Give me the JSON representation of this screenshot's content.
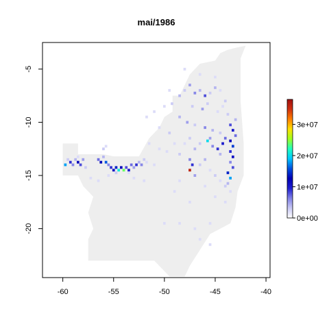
{
  "chart_data": {
    "type": "heatmap",
    "title": "mai/1986",
    "xlabel": "",
    "ylabel": "",
    "xlim": [
      -62,
      -39.6
    ],
    "ylim": [
      -24.6,
      -2.5
    ],
    "x_ticks": [
      -60,
      -55,
      -50,
      -45,
      -40
    ],
    "x_tick_labels": [
      "-60",
      "-55",
      "-50",
      "-45",
      "-40"
    ],
    "y_ticks": [
      -5,
      -10,
      -15,
      -20
    ],
    "y_tick_labels": [
      "-5",
      "-10",
      "-15",
      "-20"
    ],
    "colorbar": {
      "range": [
        0,
        38000000
      ],
      "ticks": [
        0,
        10000000,
        20000000,
        30000000
      ],
      "tick_labels": [
        "0e+00",
        "1e+07",
        "2e+07",
        "3e+07"
      ],
      "colors": [
        "#ffffff",
        "#c8c8f4",
        "#8080e6",
        "#2020d0",
        "#0000b4",
        "#0050e0",
        "#00c8ff",
        "#20ffc0",
        "#a0ff20",
        "#ffe000",
        "#ff8000",
        "#d03010",
        "#a01010"
      ]
    },
    "grid": false,
    "background_region_color": "#eeeeee",
    "cell_size_deg": 0.25,
    "region_polygon": [
      [
        -60,
        -12
      ],
      [
        -58.5,
        -12
      ],
      [
        -58.5,
        -13
      ],
      [
        -56,
        -13
      ],
      [
        -55,
        -13.2
      ],
      [
        -52.5,
        -13.2
      ],
      [
        -51.5,
        -11.5
      ],
      [
        -50.5,
        -10.5
      ],
      [
        -50,
        -9.5
      ],
      [
        -49.2,
        -9
      ],
      [
        -49.2,
        -7.5
      ],
      [
        -48.5,
        -7.5
      ],
      [
        -48,
        -6.5
      ],
      [
        -47.5,
        -5.5
      ],
      [
        -46.5,
        -4.5
      ],
      [
        -45,
        -4.2
      ],
      [
        -44.5,
        -3.5
      ],
      [
        -43.8,
        -3.2
      ],
      [
        -43,
        -3
      ],
      [
        -42,
        -2.8
      ],
      [
        -42.5,
        -4
      ],
      [
        -42.5,
        -8
      ],
      [
        -42.2,
        -12
      ],
      [
        -42.2,
        -15
      ],
      [
        -42.8,
        -16.5
      ],
      [
        -43,
        -18
      ],
      [
        -43.5,
        -19.5
      ],
      [
        -44.5,
        -20
      ],
      [
        -45.5,
        -20.5
      ],
      [
        -46.5,
        -22
      ],
      [
        -47.5,
        -23.5
      ],
      [
        -48,
        -24.5
      ],
      [
        -49.5,
        -24.5
      ],
      [
        -50.5,
        -23.5
      ],
      [
        -51,
        -23
      ],
      [
        -53,
        -23
      ],
      [
        -54.5,
        -23
      ],
      [
        -56,
        -23
      ],
      [
        -57.5,
        -23
      ],
      [
        -57.5,
        -21
      ],
      [
        -57,
        -20
      ],
      [
        -57.5,
        -18.5
      ],
      [
        -57,
        -17
      ],
      [
        -58,
        -16
      ],
      [
        -58.5,
        -15
      ],
      [
        -60,
        -15
      ]
    ],
    "cells": [
      [
        -59.5,
        -13.5,
        3000000.0
      ],
      [
        -59.25,
        -13.75,
        9000000.0
      ],
      [
        -59.0,
        -14.0,
        6000000.0
      ],
      [
        -58.75,
        -13.5,
        4000000.0
      ],
      [
        -58.5,
        -13.75,
        12000000.0
      ],
      [
        -58.25,
        -14.0,
        8000000.0
      ],
      [
        -58.0,
        -13.5,
        5000000.0
      ],
      [
        -57.75,
        -14.25,
        3000000.0
      ],
      [
        -58.5,
        -13.25,
        2000000.0
      ],
      [
        -59.75,
        -14.0,
        18000000.0
      ],
      [
        -56.5,
        -13.5,
        7000000.0
      ],
      [
        -56.25,
        -13.75,
        13000000.0
      ],
      [
        -56.0,
        -13.25,
        4000000.0
      ],
      [
        -55.75,
        -13.75,
        16000000.0
      ],
      [
        -55.5,
        -14.0,
        6000000.0
      ],
      [
        -55.25,
        -14.25,
        9000000.0
      ],
      [
        -55.0,
        -14.5,
        11000000.0
      ],
      [
        -54.75,
        -14.25,
        14000000.0
      ],
      [
        -54.5,
        -14.5,
        21000000.0
      ],
      [
        -54.25,
        -14.25,
        12000000.0
      ],
      [
        -54.0,
        -14.5,
        24000000.0
      ],
      [
        -53.75,
        -14.25,
        8000000.0
      ],
      [
        -53.5,
        -14.5,
        10000000.0
      ],
      [
        -53.25,
        -14.0,
        7000000.0
      ],
      [
        -53.0,
        -14.25,
        5000000.0
      ],
      [
        -52.75,
        -14.0,
        9000000.0
      ],
      [
        -52.5,
        -13.75,
        4000000.0
      ],
      [
        -52.25,
        -14.0,
        6000000.0
      ],
      [
        -52.0,
        -13.5,
        3000000.0
      ],
      [
        -51.75,
        -13.75,
        2000000.0
      ],
      [
        -54.75,
        -14.75,
        3000000.0
      ],
      [
        -53.5,
        -14.75,
        2000000.0
      ],
      [
        -55.5,
        -15.0,
        2000000.0
      ],
      [
        -53.0,
        -15.25,
        2000000.0
      ],
      [
        -56.0,
        -12.5,
        3000000.0
      ],
      [
        -55.75,
        -12.25,
        2000000.0
      ],
      [
        -51.75,
        -9.5,
        2000000.0
      ],
      [
        -50.5,
        -10.5,
        2000000.0
      ],
      [
        -51.5,
        -12.0,
        2000000.0
      ],
      [
        -49.25,
        -8.25,
        3000000.0
      ],
      [
        -48.5,
        -7.5,
        4000000.0
      ],
      [
        -48.0,
        -7.0,
        3000000.0
      ],
      [
        -47.5,
        -6.5,
        5000000.0
      ],
      [
        -47.0,
        -7.25,
        6000000.0
      ],
      [
        -46.5,
        -7.0,
        4000000.0
      ],
      [
        -46.0,
        -7.5,
        8000000.0
      ],
      [
        -45.5,
        -7.25,
        3000000.0
      ],
      [
        -45.0,
        -6.75,
        4000000.0
      ],
      [
        -44.5,
        -7.0,
        2000000.0
      ],
      [
        -44.0,
        -8.0,
        3000000.0
      ],
      [
        -47.25,
        -8.5,
        3000000.0
      ],
      [
        -46.25,
        -8.75,
        5000000.0
      ],
      [
        -45.75,
        -8.25,
        3000000.0
      ],
      [
        -44.75,
        -9.0,
        2000000.0
      ],
      [
        -48.5,
        -9.5,
        4000000.0
      ],
      [
        -47.75,
        -10.0,
        5000000.0
      ],
      [
        -47.0,
        -10.25,
        3000000.0
      ],
      [
        -46.0,
        -10.5,
        6000000.0
      ],
      [
        -45.25,
        -10.75,
        4000000.0
      ],
      [
        -44.5,
        -11.0,
        3000000.0
      ],
      [
        -43.5,
        -10.25,
        8000000.0
      ],
      [
        -43.25,
        -10.75,
        10000000.0
      ],
      [
        -43.0,
        -11.25,
        7000000.0
      ],
      [
        -43.5,
        -11.75,
        12000000.0
      ],
      [
        -43.25,
        -12.25,
        15000000.0
      ],
      [
        -43.5,
        -12.75,
        9000000.0
      ],
      [
        -43.25,
        -13.25,
        11000000.0
      ],
      [
        -43.5,
        -13.75,
        6000000.0
      ],
      [
        -43.25,
        -14.25,
        8000000.0
      ],
      [
        -43.75,
        -14.75,
        14000000.0
      ],
      [
        -43.5,
        -15.25,
        18000000.0
      ],
      [
        -43.75,
        -15.75,
        4000000.0
      ],
      [
        -45.5,
        -11.5,
        5000000.0
      ],
      [
        -45.75,
        -11.75,
        20000000.0
      ],
      [
        -45.25,
        -12.25,
        6000000.0
      ],
      [
        -44.75,
        -12.5,
        9000000.0
      ],
      [
        -44.5,
        -13.0,
        4000000.0
      ],
      [
        -44.25,
        -12.0,
        10000000.0
      ],
      [
        -44.0,
        -11.5,
        7000000.0
      ],
      [
        -46.5,
        -12.0,
        3000000.0
      ],
      [
        -47.0,
        -12.5,
        4000000.0
      ],
      [
        -47.5,
        -13.5,
        6000000.0
      ],
      [
        -47.5,
        -14.5,
        36000000.0
      ],
      [
        -47.25,
        -14.0,
        9000000.0
      ],
      [
        -47.0,
        -15.0,
        5000000.0
      ],
      [
        -46.5,
        -14.0,
        3000000.0
      ],
      [
        -46.0,
        -13.5,
        4000000.0
      ],
      [
        -45.5,
        -14.5,
        2000000.0
      ],
      [
        -45.0,
        -15.0,
        3000000.0
      ],
      [
        -44.5,
        -15.5,
        2000000.0
      ],
      [
        -44.0,
        -16.0,
        3000000.0
      ],
      [
        -49.5,
        -11.0,
        3000000.0
      ],
      [
        -49.0,
        -12.0,
        2000000.0
      ],
      [
        -48.5,
        -13.0,
        3000000.0
      ],
      [
        -48.0,
        -12.0,
        2000000.0
      ],
      [
        -47.5,
        -11.5,
        3000000.0
      ],
      [
        -43.0,
        -9.75,
        4000000.0
      ],
      [
        -43.75,
        -9.25,
        3000000.0
      ],
      [
        -44.25,
        -8.5,
        2000000.0
      ],
      [
        -45.0,
        -5.75,
        2000000.0
      ],
      [
        -46.5,
        -5.5,
        2000000.0
      ],
      [
        -48.0,
        -5.0,
        2000000.0
      ],
      [
        -49.5,
        -7.0,
        2000000.0
      ],
      [
        -50.0,
        -8.5,
        2000000.0
      ],
      [
        -51.0,
        -9.0,
        2000000.0
      ],
      [
        -48.5,
        -15.5,
        2000000.0
      ],
      [
        -49.0,
        -16.5,
        2000000.0
      ],
      [
        -46.0,
        -16.0,
        2000000.0
      ],
      [
        -45.0,
        -17.0,
        2000000.0
      ],
      [
        -44.0,
        -17.5,
        2000000.0
      ],
      [
        -43.5,
        -16.5,
        2000000.0
      ],
      [
        -47.5,
        -17.5,
        2000000.0
      ],
      [
        -48.5,
        -19.5,
        2000000.0
      ],
      [
        -47.0,
        -20.0,
        2000000.0
      ],
      [
        -45.5,
        -19.5,
        2000000.0
      ],
      [
        -46.5,
        -21.0,
        2000000.0
      ],
      [
        -45.5,
        -21.5,
        2000000.0
      ],
      [
        -50.0,
        -19.5,
        2000000.0
      ],
      [
        -56.5,
        -15.5,
        2000000.0
      ],
      [
        -57.25,
        -15.25,
        2000000.0
      ],
      [
        -52.0,
        -15.5,
        2000000.0
      ],
      [
        -51.0,
        -14.0,
        2000000.0
      ],
      [
        -50.5,
        -12.5,
        2000000.0
      ],
      [
        -49.75,
        -12.75,
        2000000.0
      ]
    ]
  }
}
